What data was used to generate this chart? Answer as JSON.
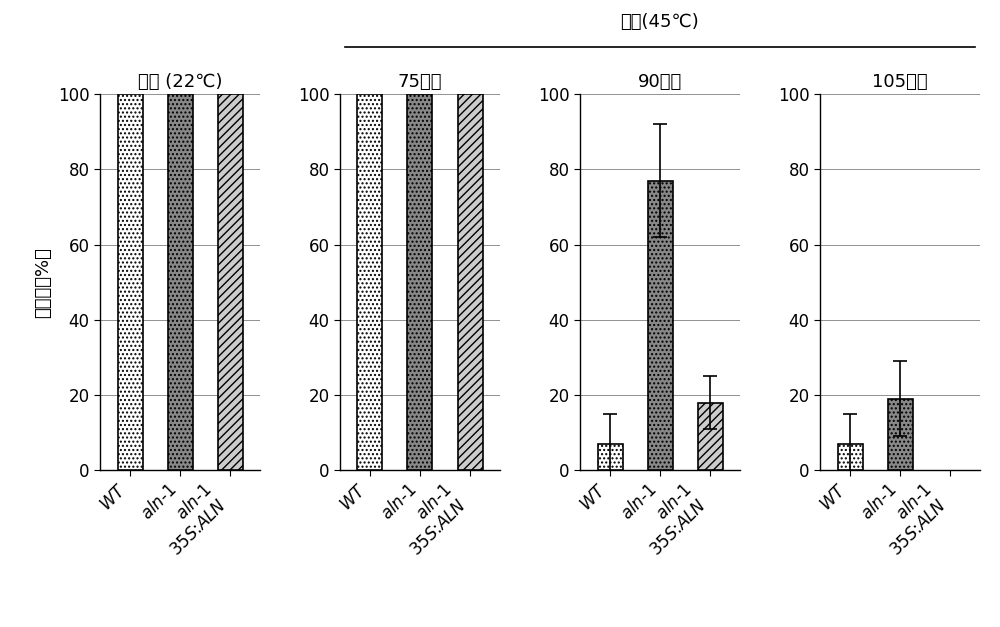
{
  "title_top": "热激(45℃)",
  "ylabel": "存活率（%）",
  "group_subtitles": [
    "对照 (22℃)",
    "75分钟",
    "90分钟",
    "105分钟"
  ],
  "categories": [
    "WT",
    "aln-1",
    "aln-1 35S:ALN"
  ],
  "values": [
    [
      100,
      100,
      100
    ],
    [
      100,
      100,
      100
    ],
    [
      7,
      77,
      18
    ],
    [
      7,
      19,
      0
    ]
  ],
  "errors": [
    [
      0,
      0,
      0
    ],
    [
      0,
      0,
      0
    ],
    [
      8,
      15,
      7
    ],
    [
      8,
      10,
      0
    ]
  ],
  "ylim": [
    0,
    100
  ],
  "yticks": [
    0,
    20,
    40,
    60,
    80,
    100
  ],
  "background_color": "#ffffff",
  "title_fontsize": 13,
  "label_fontsize": 13,
  "tick_fontsize": 12,
  "subtitle_fontsize": 13
}
